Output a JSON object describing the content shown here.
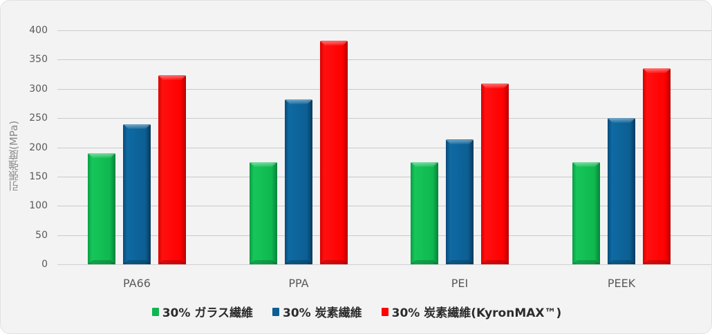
{
  "chart_data": {
    "type": "bar",
    "title": "",
    "xlabel": "",
    "ylabel": "引張強度(MPa)",
    "ylim": [
      0,
      400
    ],
    "yticks": [
      0,
      50,
      100,
      150,
      200,
      250,
      300,
      350,
      400
    ],
    "grid": true,
    "legend_position": "bottom",
    "categories": [
      "PA66",
      "PPA",
      "PEI",
      "PEEK"
    ],
    "series": [
      {
        "name": "30% ガラス繊維",
        "color": "#10b550",
        "values": [
          190,
          175,
          175,
          175
        ]
      },
      {
        "name": "30% 炭素繊維",
        "color": "#0c5f93",
        "values": [
          240,
          282,
          213,
          250
        ]
      },
      {
        "name": "30% 炭素繊維(KyronMAX™)",
        "color": "#ff0000",
        "values": [
          323,
          382,
          309,
          335
        ]
      }
    ]
  }
}
